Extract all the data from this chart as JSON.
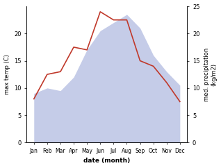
{
  "months": [
    "Jan",
    "Feb",
    "Mar",
    "Apr",
    "May",
    "Jun",
    "Jul",
    "Aug",
    "Sep",
    "Oct",
    "Nov",
    "Dec"
  ],
  "temp_line": [
    8.0,
    12.5,
    13.0,
    17.5,
    17.0,
    24.0,
    22.5,
    22.5,
    15.0,
    14.0,
    11.0,
    7.5
  ],
  "rain_area": [
    9.0,
    10.0,
    9.5,
    12.0,
    17.0,
    20.5,
    22.0,
    23.5,
    21.0,
    16.0,
    13.0,
    10.5
  ],
  "temp_color": "#c0392b",
  "rain_fill_color": "#c5cce8",
  "ylabel_left": "max temp (C)",
  "ylabel_right": "med. precipitation\n(kg/m2)",
  "xlabel": "date (month)",
  "ylim_left": [
    0,
    25
  ],
  "ylim_right": [
    0,
    25
  ],
  "yticks_left": [
    0,
    5,
    10,
    15,
    20
  ],
  "yticks_right": [
    0,
    5,
    10,
    15,
    20,
    25
  ],
  "background_color": "#ffffff",
  "figure_size": [
    3.18,
    2.42
  ],
  "dpi": 100
}
